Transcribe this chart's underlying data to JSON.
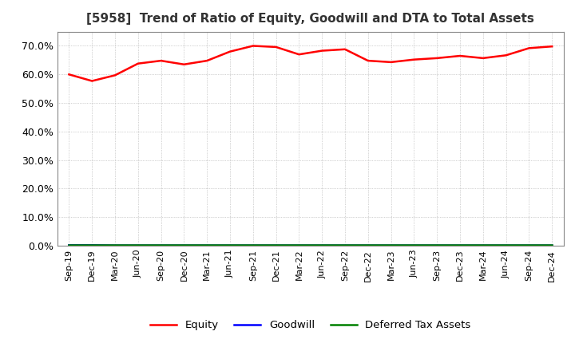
{
  "title": "[5958]  Trend of Ratio of Equity, Goodwill and DTA to Total Assets",
  "title_fontsize": 11,
  "ylim": [
    0.0,
    0.75
  ],
  "yticks": [
    0.0,
    0.1,
    0.2,
    0.3,
    0.4,
    0.5,
    0.6,
    0.7
  ],
  "background_color": "#ffffff",
  "plot_bg_color": "#ffffff",
  "grid_color": "#aaaaaa",
  "x_labels": [
    "Sep-19",
    "Dec-19",
    "Mar-20",
    "Jun-20",
    "Sep-20",
    "Dec-20",
    "Mar-21",
    "Jun-21",
    "Sep-21",
    "Dec-21",
    "Mar-22",
    "Jun-22",
    "Sep-22",
    "Dec-22",
    "Mar-23",
    "Jun-23",
    "Sep-23",
    "Dec-23",
    "Mar-24",
    "Jun-24",
    "Sep-24",
    "Dec-24"
  ],
  "equity": [
    0.6,
    0.577,
    0.597,
    0.638,
    0.648,
    0.635,
    0.648,
    0.68,
    0.7,
    0.696,
    0.67,
    0.683,
    0.688,
    0.648,
    0.643,
    0.652,
    0.657,
    0.665,
    0.657,
    0.667,
    0.692,
    0.698
  ],
  "goodwill": [
    0.002,
    0.002,
    0.001,
    0.001,
    0.001,
    0.001,
    0.001,
    0.001,
    0.001,
    0.001,
    0.001,
    0.001,
    0.001,
    0.001,
    0.001,
    0.001,
    0.001,
    0.001,
    0.001,
    0.001,
    0.001,
    0.001
  ],
  "dta": [
    0.003,
    0.003,
    0.003,
    0.003,
    0.003,
    0.003,
    0.003,
    0.003,
    0.003,
    0.003,
    0.003,
    0.003,
    0.003,
    0.003,
    0.003,
    0.003,
    0.003,
    0.003,
    0.003,
    0.003,
    0.003,
    0.003
  ],
  "equity_color": "#ff0000",
  "goodwill_color": "#0000ff",
  "dta_color": "#008000",
  "legend_labels": [
    "Equity",
    "Goodwill",
    "Deferred Tax Assets"
  ]
}
